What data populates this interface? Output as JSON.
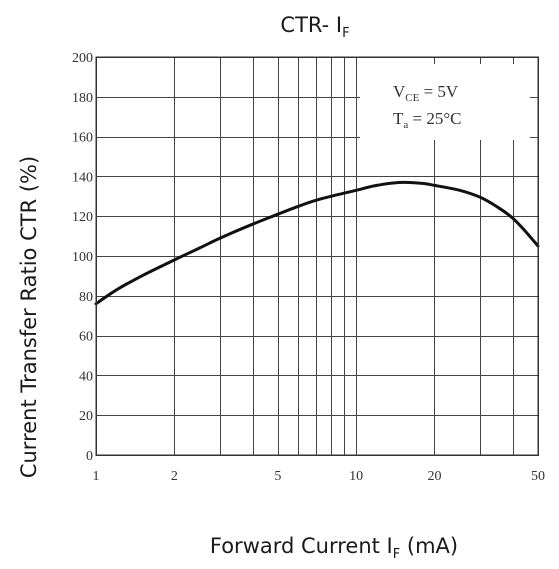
{
  "chart_data": {
    "type": "line",
    "title": {
      "main": "CTR- I",
      "sub": "F"
    },
    "xlabel": {
      "main": "Forward Current I",
      "sub": "F",
      "suffix": " (mA)"
    },
    "ylabel": "Current Transfer Ratio CTR (%)",
    "x_scale": "log",
    "xlim": [
      1,
      50
    ],
    "ylim": [
      0,
      200
    ],
    "grid": true,
    "x_ticks": [
      1,
      2,
      5,
      10,
      20,
      50
    ],
    "x_tick_labels": [
      "1",
      "2",
      "5",
      "10",
      "20",
      "50"
    ],
    "x_gridlines": [
      2,
      3,
      4,
      5,
      6,
      7,
      8,
      9,
      10,
      20,
      30,
      40
    ],
    "y_ticks": [
      0,
      20,
      40,
      60,
      80,
      100,
      120,
      140,
      160,
      180,
      200
    ],
    "y_tick_labels": [
      "0",
      "20",
      "40",
      "60",
      "80",
      "100",
      "120",
      "140",
      "160",
      "180",
      "200"
    ],
    "annotation": {
      "line1": {
        "main": "V",
        "sub": "CE",
        "rest": " = 5V"
      },
      "line2": {
        "main": "T",
        "sub": "a",
        "rest": " = 25°C"
      },
      "placement": "top-right"
    },
    "series": [
      {
        "x": [
          1,
          1.2,
          1.5,
          2,
          2.5,
          3,
          4,
          5,
          6,
          7,
          8,
          10,
          12,
          15,
          18,
          20,
          25,
          30,
          35,
          40,
          45,
          50
        ],
        "values": [
          76,
          83,
          90,
          98,
          104,
          109,
          116,
          121,
          125,
          128,
          130,
          133,
          135.5,
          137,
          136.5,
          135.5,
          133,
          129.5,
          124.5,
          119,
          112,
          105
        ]
      }
    ]
  }
}
